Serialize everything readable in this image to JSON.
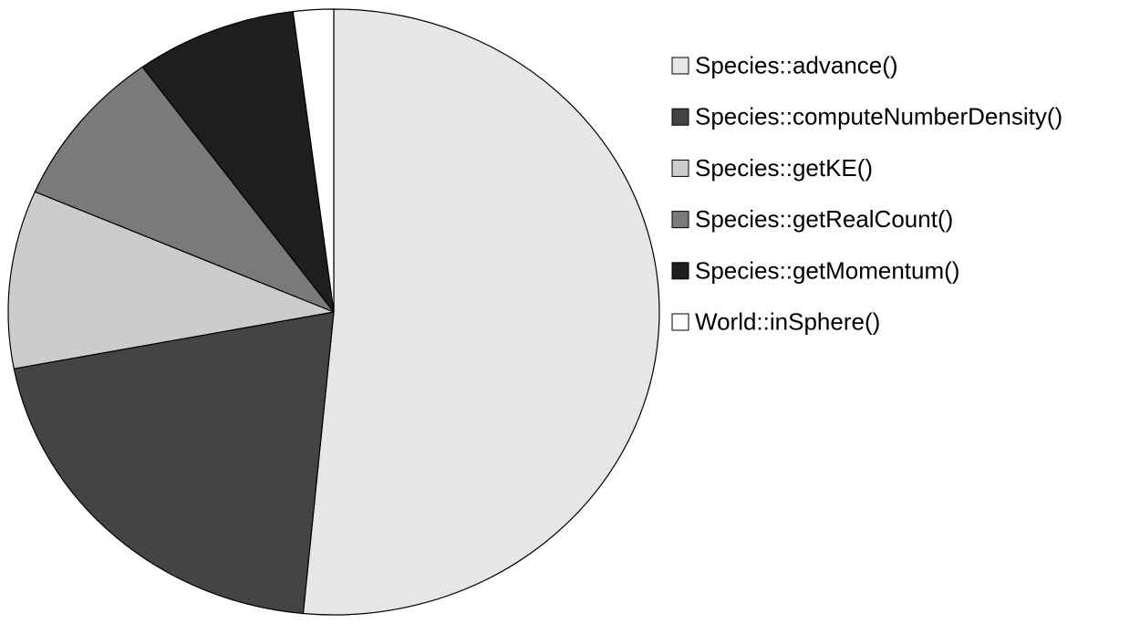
{
  "chart_data": {
    "type": "pie",
    "title": "",
    "legend_position": "right",
    "start_angle_deg": 0,
    "direction": "clockwise",
    "slices": [
      {
        "label": "Species::advance()",
        "value": 51.5,
        "color": "#e6e6e6"
      },
      {
        "label": "Species::computeNumberDensity()",
        "value": 20.5,
        "color": "#444444"
      },
      {
        "label": "Species::getKE()",
        "value": 9.5,
        "color": "#cccccc"
      },
      {
        "label": "Species::getRealCount()",
        "value": 8.5,
        "color": "#7a7a7a"
      },
      {
        "label": "Species::getMomentum()",
        "value": 8.0,
        "color": "#1e1e1e"
      },
      {
        "label": "World::inSphere()",
        "value": 2.0,
        "color": "#ffffff"
      }
    ]
  }
}
